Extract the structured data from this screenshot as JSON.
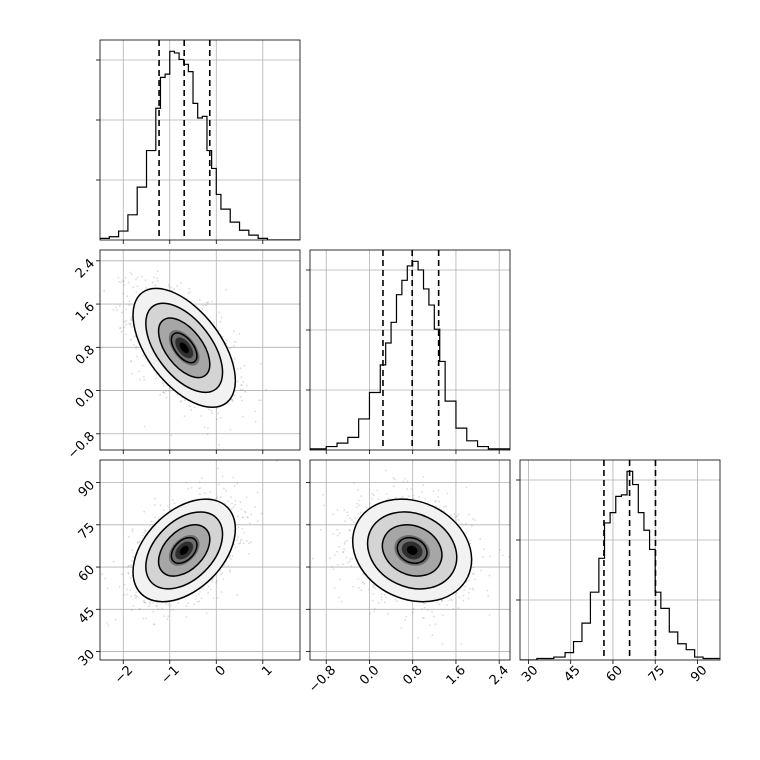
{
  "chart_data": {
    "type": "corner",
    "grid": true,
    "parameters": [
      "",
      "",
      ""
    ],
    "ranges": [
      [
        -2.5,
        1.8
      ],
      [
        -1.1,
        2.6
      ],
      [
        27,
        98
      ]
    ],
    "ticks": [
      [
        "−2",
        "−1",
        "0",
        "1"
      ],
      [
        "−0.8",
        "0.0",
        "0.8",
        "1.6",
        "2.4"
      ],
      [
        "30",
        "45",
        "60",
        "75",
        "90"
      ]
    ],
    "tick_values": [
      [
        -2,
        -1,
        0,
        1
      ],
      [
        -0.8,
        0.0,
        0.8,
        1.6,
        2.4
      ],
      [
        30,
        45,
        60,
        75,
        90
      ]
    ],
    "histograms": [
      {
        "param": 0,
        "bin_edges": [
          -2.5,
          -2.3,
          -2.1,
          -1.9,
          -1.7,
          -1.5,
          -1.3,
          -1.2,
          -1.1,
          -1.0,
          -0.9,
          -0.8,
          -0.7,
          -0.6,
          -0.5,
          -0.4,
          -0.3,
          -0.2,
          -0.1,
          0.0,
          0.1,
          0.3,
          0.5,
          0.7,
          0.9,
          1.1,
          1.8
        ],
        "counts": [
          2,
          4,
          11,
          31,
          65,
          110,
          162,
          200,
          204,
          232,
          230,
          222,
          216,
          207,
          168,
          150,
          152,
          110,
          88,
          56,
          38,
          22,
          12,
          6,
          2,
          0
        ],
        "quantiles": [
          -1.23,
          -0.69,
          -0.14
        ]
      },
      {
        "param": 1,
        "bin_edges": [
          -1.1,
          -0.8,
          -0.6,
          -0.4,
          -0.2,
          0.0,
          0.2,
          0.3,
          0.4,
          0.5,
          0.6,
          0.7,
          0.8,
          0.9,
          1.0,
          1.1,
          1.2,
          1.3,
          1.4,
          1.6,
          1.8,
          2.0,
          2.2,
          2.6
        ],
        "counts": [
          2,
          6,
          12,
          22,
          54,
          100,
          148,
          186,
          222,
          270,
          295,
          320,
          328,
          313,
          280,
          252,
          210,
          154,
          85,
          38,
          16,
          6,
          2
        ],
        "quantiles": [
          0.25,
          0.79,
          1.28
        ]
      },
      {
        "param": 2,
        "bin_edges": [
          27,
          33,
          39,
          43,
          46,
          49,
          52,
          55,
          57,
          59,
          61,
          63,
          65,
          67,
          69,
          71,
          73,
          75,
          77,
          80,
          83,
          86,
          89,
          92,
          98
        ],
        "counts": [
          0,
          2,
          4,
          10,
          25,
          50,
          92,
          138,
          186,
          200,
          222,
          224,
          256,
          238,
          200,
          176,
          150,
          92,
          70,
          38,
          22,
          14,
          4,
          2
        ],
        "quantiles": [
          56.8,
          65.9,
          75.1
        ]
      }
    ],
    "panels_2d": [
      {
        "x_param": 0,
        "y_param": 1,
        "mean": [
          -0.69,
          0.79
        ],
        "std": [
          0.55,
          0.55
        ],
        "rho": -0.55,
        "contour_levels": [
          0.5,
          1.0,
          1.5,
          2.0
        ]
      },
      {
        "x_param": 0,
        "y_param": 2,
        "mean": [
          -0.69,
          65.9
        ],
        "std": [
          0.55,
          9.1
        ],
        "rho": 0.42,
        "contour_levels": [
          0.5,
          1.0,
          1.5,
          2.0
        ]
      },
      {
        "x_param": 1,
        "y_param": 2,
        "mean": [
          0.79,
          65.9
        ],
        "std": [
          0.55,
          9.1
        ],
        "rho": -0.18,
        "contour_levels": [
          0.5,
          1.0,
          1.5,
          2.0
        ]
      }
    ],
    "colors": {
      "line": "#000000",
      "points": "#9a9a9a",
      "density_dark": "#000000",
      "grid": "#b0b0b0"
    }
  }
}
